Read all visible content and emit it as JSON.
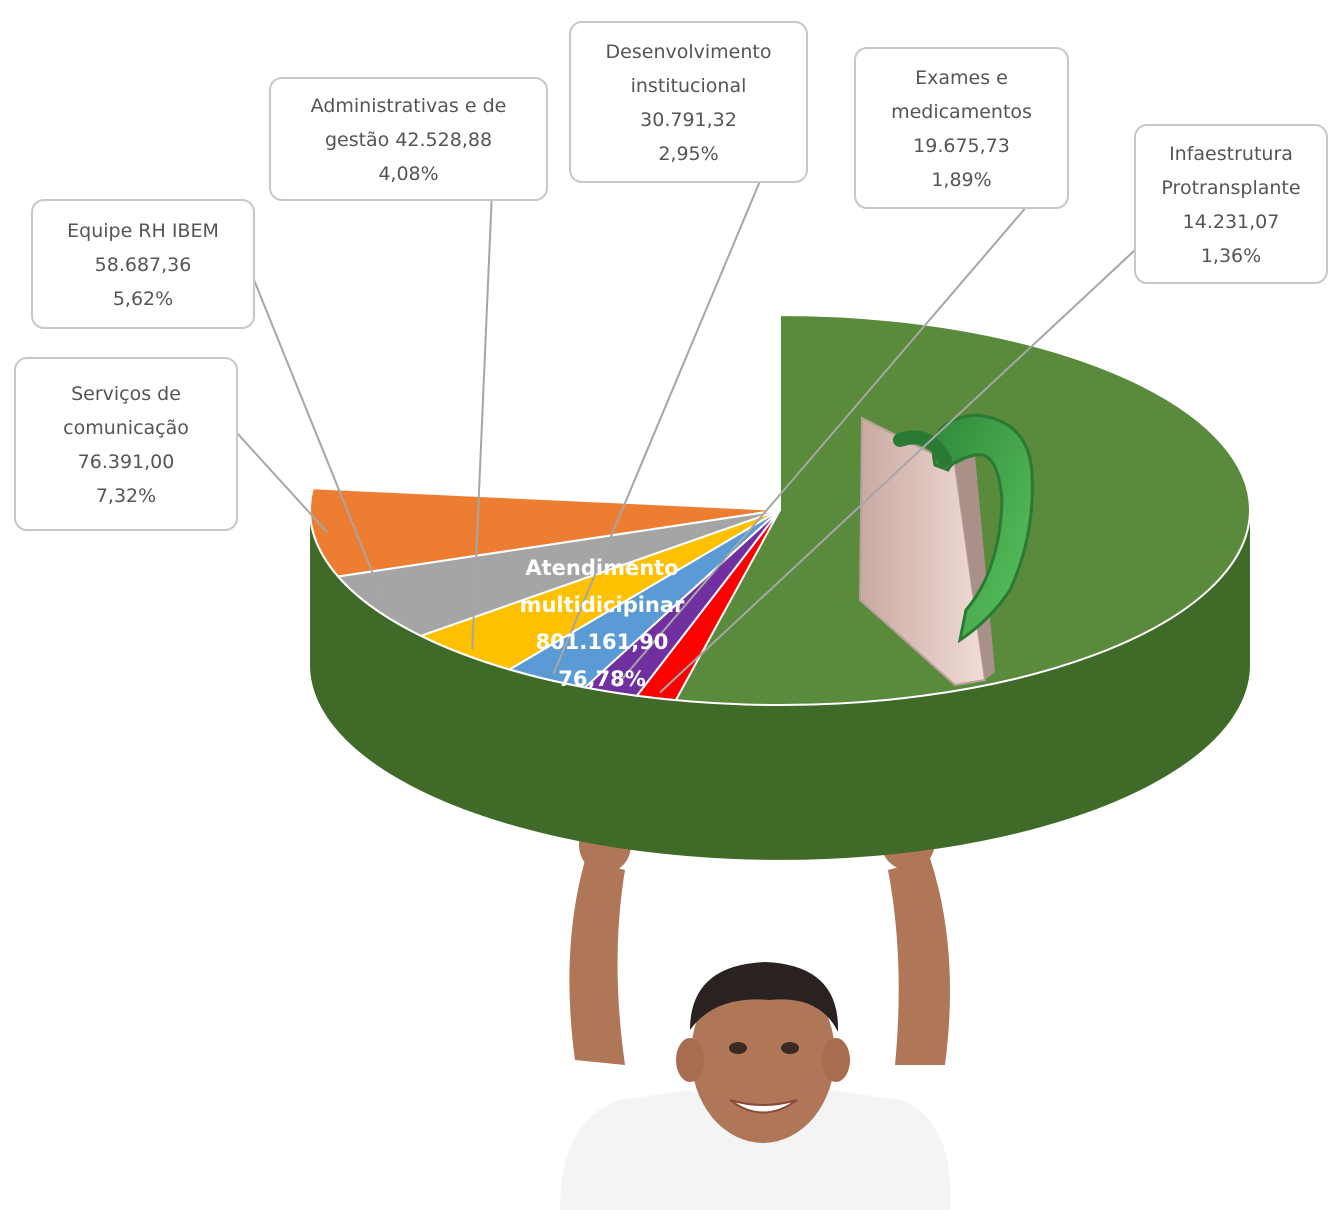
{
  "colors": {
    "top": "#5a8a3c",
    "side": "#3f6a27"
  },
  "chart_data": {
    "type": "pie",
    "style": "3d",
    "slices": [
      {
        "label_lines": [
          "Atendimento",
          "multidicipinar"
        ],
        "value_text": "801.161,90",
        "percent_text": "76,78%",
        "value": 801161.9,
        "percent": 76.78,
        "color": "#5a8a3c"
      },
      {
        "label_lines": [
          "Serviços de",
          "comunicação"
        ],
        "value_text": "76.391,00",
        "percent_text": "7,32%",
        "value": 76391.0,
        "percent": 7.32,
        "color": "#ed7d31"
      },
      {
        "label_lines": [
          "Equipe RH IBEM"
        ],
        "value_text": "58.687,36",
        "percent_text": "5,62%",
        "value": 58687.36,
        "percent": 5.62,
        "color": "#a5a5a5"
      },
      {
        "label_lines": [
          "Administrativas e de",
          "gestão 42.528,88"
        ],
        "value_text": "",
        "percent_text": "4,08%",
        "value": 42528.88,
        "percent": 4.08,
        "color": "#ffc000"
      },
      {
        "label_lines": [
          "Desenvolvimento",
          "institucional"
        ],
        "value_text": "30.791,32",
        "percent_text": "2,95%",
        "value": 30791.32,
        "percent": 2.95,
        "color": "#5b9bd5"
      },
      {
        "label_lines": [
          "Exames e",
          "medicamentos"
        ],
        "value_text": "19.675,73",
        "percent_text": "1,89%",
        "value": 19675.73,
        "percent": 1.89,
        "color": "#7030a0"
      },
      {
        "label_lines": [
          "Infaestrutura",
          "Protransplante"
        ],
        "value_text": "14.231,07",
        "percent_text": "1,36%",
        "value": 14231.07,
        "percent": 1.36,
        "color": "#ff0000"
      }
    ]
  }
}
